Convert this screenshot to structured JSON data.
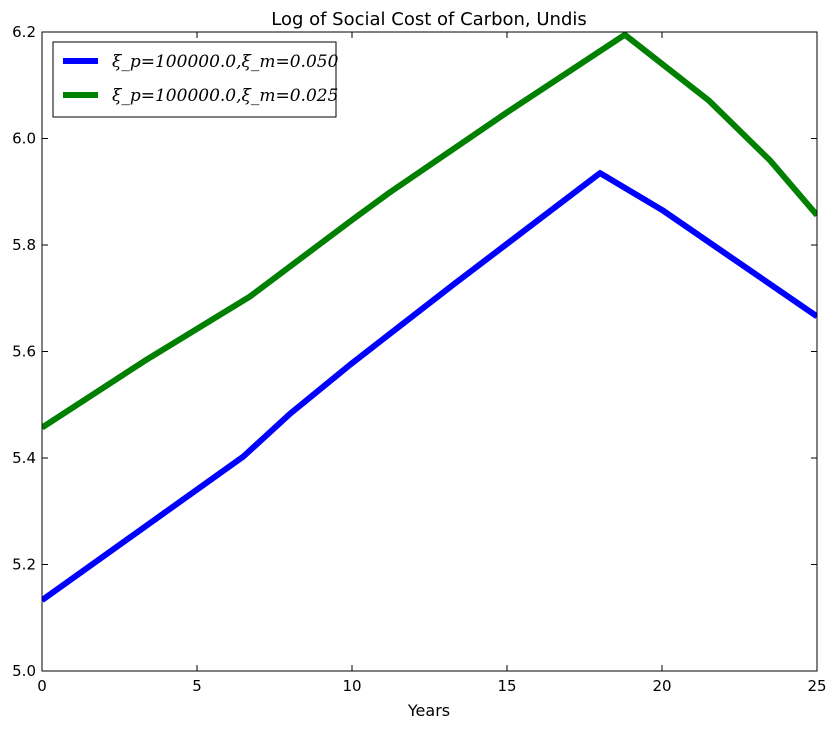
{
  "chart_data": {
    "type": "line",
    "title": "Log of Social Cost of Carbon, Undis",
    "xlabel": "Years",
    "ylabel": "",
    "xlim": [
      0,
      25
    ],
    "ylim": [
      5.0,
      6.2
    ],
    "x_ticks": [
      0,
      5,
      10,
      15,
      20,
      25
    ],
    "x_tick_labels": [
      "0",
      "5",
      "10",
      "15",
      "20",
      "25"
    ],
    "y_ticks": [
      5.0,
      5.2,
      5.4,
      5.6,
      5.8,
      6.0,
      6.2
    ],
    "y_tick_labels": [
      "5.0",
      "5.2",
      "5.4",
      "5.6",
      "5.8",
      "6.0",
      "6.2"
    ],
    "grid": false,
    "legend_position": "top-left",
    "series": [
      {
        "name": "ξ_p=100000.0,ξ_m=0.050",
        "color": "#0000ff",
        "x": [
          0,
          3.3,
          6.5,
          8,
          10,
          13.3,
          18,
          20,
          22,
          25
        ],
        "y": [
          5.133,
          5.27,
          5.403,
          5.483,
          5.578,
          5.727,
          5.935,
          5.866,
          5.786,
          5.666
        ]
      },
      {
        "name": "ξ_p=100000.0,ξ_m=0.025",
        "color": "#008000",
        "x": [
          0,
          3.3,
          6.7,
          10,
          11.2,
          15,
          18.8,
          21.5,
          23.5,
          25
        ],
        "y": [
          5.457,
          5.582,
          5.703,
          5.847,
          5.898,
          6.049,
          6.195,
          6.072,
          5.958,
          5.856
        ]
      }
    ]
  }
}
